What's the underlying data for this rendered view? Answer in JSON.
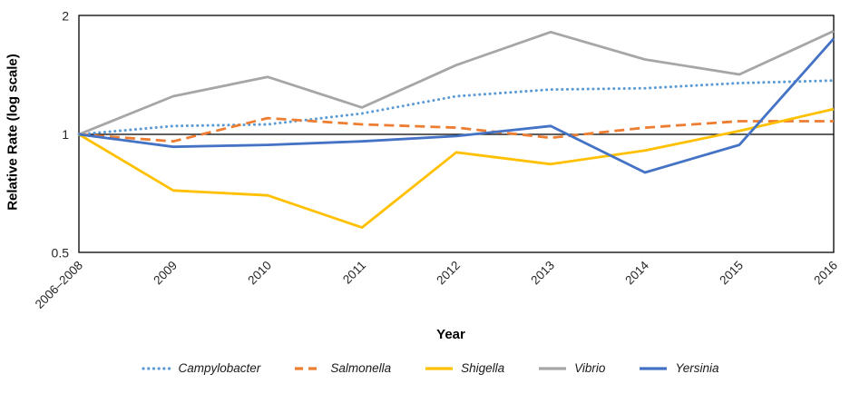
{
  "chart_data": {
    "type": "line",
    "title": "",
    "xlabel": "Year",
    "ylabel": "Relative Rate (log scale)",
    "x_categories": [
      "2006–2008",
      "2009",
      "2010",
      "2011",
      "2012",
      "2013",
      "2014",
      "2015",
      "2016"
    ],
    "y_scale": "log",
    "ylim": [
      0.5,
      2
    ],
    "yticks": [
      {
        "value": 2,
        "label": "2"
      },
      {
        "value": 1,
        "label": "1"
      },
      {
        "value": 0.5,
        "label": "0.5"
      }
    ],
    "baseline_value": 1,
    "grid": false,
    "legend_position": "bottom",
    "axis_color": "#000000",
    "text_color": "#262626",
    "series": [
      {
        "name": "Campylobacter",
        "color": "#5B9BD5",
        "line_style": "dotted",
        "values": [
          1.0,
          1.05,
          1.06,
          1.13,
          1.25,
          1.3,
          1.31,
          1.35,
          1.37
        ]
      },
      {
        "name": "Salmonella",
        "color": "#ED7D31",
        "line_style": "dashed",
        "values": [
          1.0,
          0.96,
          1.1,
          1.06,
          1.04,
          0.98,
          1.04,
          1.08,
          1.08
        ]
      },
      {
        "name": "Shigella",
        "color": "#FFC000",
        "line_style": "solid",
        "values": [
          1.0,
          0.72,
          0.7,
          0.58,
          0.9,
          0.84,
          0.91,
          1.02,
          1.16
        ]
      },
      {
        "name": "Vibrio",
        "color": "#A6A6A6",
        "line_style": "solid",
        "values": [
          1.0,
          1.25,
          1.4,
          1.17,
          1.5,
          1.82,
          1.55,
          1.42,
          1.83
        ]
      },
      {
        "name": "Yersinia",
        "color": "#4472C4",
        "line_style": "solid",
        "values": [
          1.0,
          0.93,
          0.94,
          0.96,
          0.99,
          1.05,
          0.8,
          0.94,
          1.75
        ]
      }
    ]
  }
}
